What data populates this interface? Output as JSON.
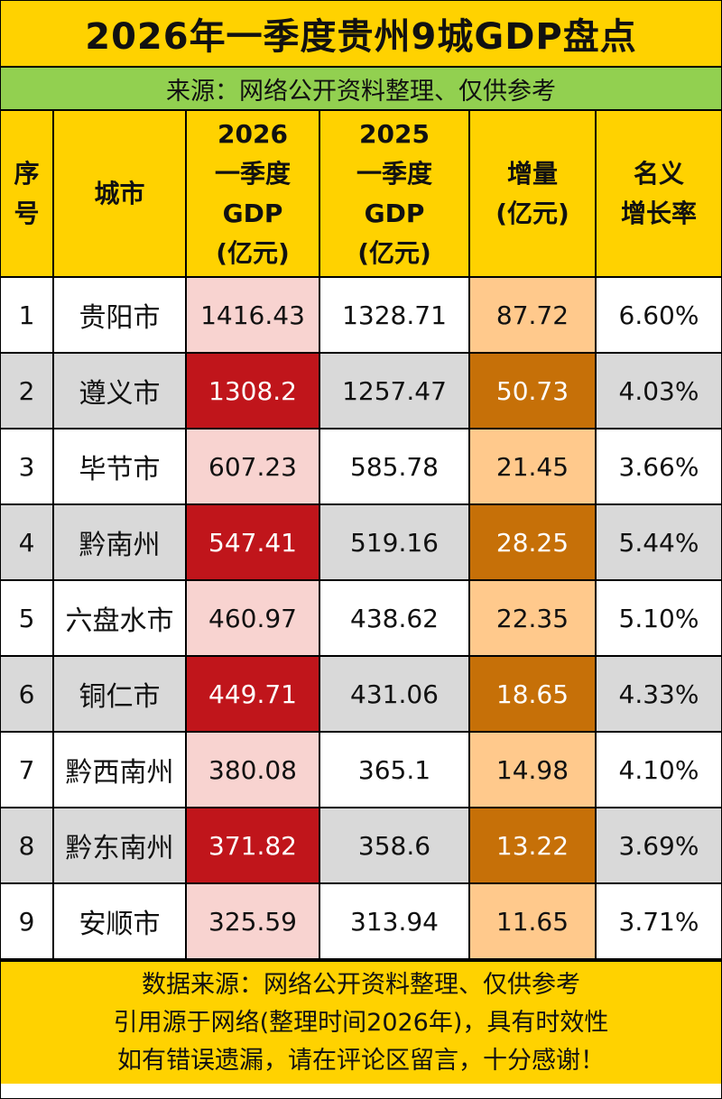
{
  "title": "2026年一季度贵州9城GDP盘点",
  "source_banner": "来源：网络公开资料整理、仅供参考",
  "headers": {
    "index": [
      "序",
      "号"
    ],
    "city": [
      "城市"
    ],
    "gdp2026": [
      "2026",
      "一季度",
      "GDP",
      "(亿元)"
    ],
    "gdp2025": [
      "2025",
      "一季度",
      "GDP",
      "(亿元)"
    ],
    "increase": [
      "增量",
      "(亿元)"
    ],
    "growth": [
      "名义",
      "增长率"
    ]
  },
  "rows": [
    {
      "index": "1",
      "city": "贵阳市",
      "gdp2026": "1416.43",
      "gdp2025": "1328.71",
      "increase": "87.72",
      "growth": "6.60%"
    },
    {
      "index": "2",
      "city": "遵义市",
      "gdp2026": "1308.2",
      "gdp2025": "1257.47",
      "increase": "50.73",
      "growth": "4.03%"
    },
    {
      "index": "3",
      "city": "毕节市",
      "gdp2026": "607.23",
      "gdp2025": "585.78",
      "increase": "21.45",
      "growth": "3.66%"
    },
    {
      "index": "4",
      "city": "黔南州",
      "gdp2026": "547.41",
      "gdp2025": "519.16",
      "increase": "28.25",
      "growth": "5.44%"
    },
    {
      "index": "5",
      "city": "六盘水市",
      "gdp2026": "460.97",
      "gdp2025": "438.62",
      "increase": "22.35",
      "growth": "5.10%"
    },
    {
      "index": "6",
      "city": "铜仁市",
      "gdp2026": "449.71",
      "gdp2025": "431.06",
      "increase": "18.65",
      "growth": "4.33%"
    },
    {
      "index": "7",
      "city": "黔西南州",
      "gdp2026": "380.08",
      "gdp2025": "365.1",
      "increase": "14.98",
      "growth": "4.10%"
    },
    {
      "index": "8",
      "city": "黔东南州",
      "gdp2026": "371.82",
      "gdp2025": "358.6",
      "increase": "13.22",
      "growth": "3.69%"
    },
    {
      "index": "9",
      "city": "安顺市",
      "gdp2026": "325.59",
      "gdp2025": "313.94",
      "increase": "11.65",
      "growth": "3.71%"
    }
  ],
  "footer": [
    "数据来源：网络公开资料整理、仅供参考",
    "引用源于网络(整理时间2026年)，具有时效性",
    "如有错误遗漏，请在评论区留言，十分感谢！"
  ],
  "colors": {
    "title_bg": "#ffd200",
    "source_bg": "#92d050",
    "gdp2026_light": "#f8d3d0",
    "gdp2026_dark": "#c0151b",
    "increase_light": "#ffc98c",
    "increase_dark": "#c67008",
    "alt_row": "#d9d9d9"
  }
}
